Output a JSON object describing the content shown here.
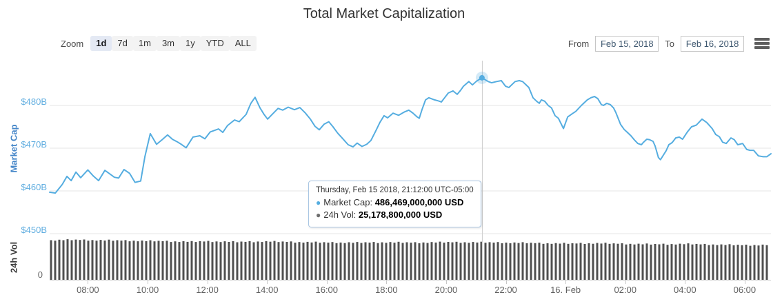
{
  "title": "Total Market Capitalization",
  "toolbar": {
    "zoom_label": "Zoom",
    "zoom_buttons": [
      {
        "label": "1d",
        "selected": true
      },
      {
        "label": "7d",
        "selected": false
      },
      {
        "label": "1m",
        "selected": false
      },
      {
        "label": "3m",
        "selected": false
      },
      {
        "label": "1y",
        "selected": false
      },
      {
        "label": "YTD",
        "selected": false
      },
      {
        "label": "ALL",
        "selected": false
      }
    ],
    "from_label": "From",
    "from_value": "Feb 15, 2018",
    "to_label": "To",
    "to_value": "Feb 16, 2018",
    "menu_icon": "hamburger-icon"
  },
  "tooltip": {
    "header": "Thursday, Feb 15 2018, 21:12:00 UTC-05:00",
    "rows": [
      {
        "bullet": "●",
        "label": "Market Cap:",
        "value": "486,469,000,000 USD"
      },
      {
        "bullet": "●",
        "label": "24h Vol:",
        "value": "25,178,800,000 USD"
      }
    ]
  },
  "colors": {
    "line": "#55ade0",
    "marker": "#55ade0",
    "marker_halo": "rgba(85,173,224,0.25)",
    "volume_bar": "#4f4f4f",
    "gridline": "#e6e6e6",
    "crosshair": "#cccccc",
    "axis_line": "#d0d0d0",
    "price_tick_label": "#61aee0",
    "selected_button_bg": "#e4e9f4",
    "tooltip_border": "#a9c6e3"
  },
  "chart_data": {
    "type": "line",
    "title": "Total Market Capitalization",
    "x_axis": {
      "kind": "datetime",
      "start_hour": 6.72,
      "end_hour": 30.88,
      "note": "hours since Feb 15 2018 00:00 local (UTC-05:00); >24 = Feb 16",
      "ticks": [
        {
          "hour": 8,
          "label": "08:00"
        },
        {
          "hour": 10,
          "label": "10:00"
        },
        {
          "hour": 12,
          "label": "12:00"
        },
        {
          "hour": 14,
          "label": "14:00"
        },
        {
          "hour": 16,
          "label": "16:00"
        },
        {
          "hour": 18,
          "label": "18:00"
        },
        {
          "hour": 20,
          "label": "20:00"
        },
        {
          "hour": 22,
          "label": "22:00"
        },
        {
          "hour": 24,
          "label": "16. Feb"
        },
        {
          "hour": 26,
          "label": "02:00"
        },
        {
          "hour": 28,
          "label": "04:00"
        },
        {
          "hour": 30,
          "label": "06:00"
        }
      ]
    },
    "y_axis_price": {
      "title": "Market Cap",
      "unit": "billion USD",
      "range": [
        450,
        490.5
      ],
      "ticks": [
        {
          "value": 450,
          "label": "$450B"
        },
        {
          "value": 460,
          "label": "$460B"
        },
        {
          "value": 470,
          "label": "$470B"
        },
        {
          "value": 480,
          "label": "$480B"
        }
      ]
    },
    "y_axis_volume": {
      "title": "24h Vol",
      "unit": "billion USD",
      "range": [
        0,
        31
      ],
      "ticks": [
        {
          "value": 0,
          "label": "0"
        }
      ]
    },
    "selected_point": {
      "hour": 21.2,
      "series": "Market Cap",
      "value_billions": 486.469,
      "volume_billions": 25.1788
    },
    "series": [
      {
        "name": "Market Cap",
        "type": "line",
        "color": "#55ade0",
        "points": [
          [
            6.72,
            459.7
          ],
          [
            6.91,
            459.5
          ],
          [
            7.14,
            461.5
          ],
          [
            7.3,
            463.4
          ],
          [
            7.44,
            462.4
          ],
          [
            7.6,
            464.4
          ],
          [
            7.76,
            463.1
          ],
          [
            8.0,
            464.9
          ],
          [
            8.18,
            463.5
          ],
          [
            8.36,
            462.4
          ],
          [
            8.57,
            464.8
          ],
          [
            8.75,
            463.9
          ],
          [
            8.89,
            463.2
          ],
          [
            9.03,
            463.0
          ],
          [
            9.21,
            465.0
          ],
          [
            9.4,
            464.1
          ],
          [
            9.58,
            462.0
          ],
          [
            9.77,
            462.3
          ],
          [
            9.91,
            468.0
          ],
          [
            10.09,
            473.4
          ],
          [
            10.3,
            470.9
          ],
          [
            10.49,
            472.0
          ],
          [
            10.67,
            473.1
          ],
          [
            10.83,
            472.1
          ],
          [
            10.99,
            471.5
          ],
          [
            11.13,
            470.9
          ],
          [
            11.29,
            470.1
          ],
          [
            11.52,
            472.6
          ],
          [
            11.75,
            472.9
          ],
          [
            11.92,
            472.2
          ],
          [
            12.1,
            473.8
          ],
          [
            12.38,
            474.5
          ],
          [
            12.52,
            473.7
          ],
          [
            12.68,
            475.3
          ],
          [
            12.91,
            476.6
          ],
          [
            13.07,
            476.2
          ],
          [
            13.3,
            477.9
          ],
          [
            13.46,
            480.5
          ],
          [
            13.6,
            481.9
          ],
          [
            13.76,
            479.5
          ],
          [
            13.9,
            477.9
          ],
          [
            14.02,
            476.8
          ],
          [
            14.16,
            477.8
          ],
          [
            14.37,
            479.3
          ],
          [
            14.53,
            478.9
          ],
          [
            14.71,
            479.6
          ],
          [
            14.92,
            479.0
          ],
          [
            15.1,
            479.5
          ],
          [
            15.29,
            478.2
          ],
          [
            15.45,
            476.8
          ],
          [
            15.61,
            475.1
          ],
          [
            15.75,
            474.3
          ],
          [
            15.91,
            475.6
          ],
          [
            16.07,
            476.2
          ],
          [
            16.21,
            475.0
          ],
          [
            16.37,
            473.5
          ],
          [
            16.54,
            472.2
          ],
          [
            16.72,
            470.8
          ],
          [
            16.88,
            470.3
          ],
          [
            17.02,
            471.2
          ],
          [
            17.18,
            470.4
          ],
          [
            17.34,
            470.9
          ],
          [
            17.48,
            471.8
          ],
          [
            17.64,
            474.0
          ],
          [
            17.78,
            476.0
          ],
          [
            17.92,
            477.6
          ],
          [
            18.04,
            477.1
          ],
          [
            18.22,
            478.2
          ],
          [
            18.41,
            477.7
          ],
          [
            18.61,
            478.5
          ],
          [
            18.75,
            478.9
          ],
          [
            18.89,
            478.2
          ],
          [
            19.03,
            477.3
          ],
          [
            19.1,
            477.0
          ],
          [
            19.19,
            479.0
          ],
          [
            19.31,
            481.3
          ],
          [
            19.42,
            481.8
          ],
          [
            19.61,
            481.3
          ],
          [
            19.77,
            481.0
          ],
          [
            19.84,
            480.8
          ],
          [
            19.95,
            481.8
          ],
          [
            20.07,
            482.9
          ],
          [
            20.23,
            483.4
          ],
          [
            20.37,
            482.6
          ],
          [
            20.48,
            483.5
          ],
          [
            20.58,
            484.5
          ],
          [
            20.76,
            485.6
          ],
          [
            20.88,
            484.8
          ],
          [
            21.02,
            485.7
          ],
          [
            21.2,
            486.469
          ],
          [
            21.41,
            485.6
          ],
          [
            21.52,
            485.3
          ],
          [
            21.69,
            485.6
          ],
          [
            21.85,
            485.8
          ],
          [
            21.99,
            484.5
          ],
          [
            22.1,
            484.2
          ],
          [
            22.31,
            485.6
          ],
          [
            22.45,
            485.8
          ],
          [
            22.56,
            485.6
          ],
          [
            22.77,
            484.2
          ],
          [
            22.91,
            481.8
          ],
          [
            23.03,
            481.0
          ],
          [
            23.12,
            480.5
          ],
          [
            23.19,
            481.3
          ],
          [
            23.3,
            481.0
          ],
          [
            23.42,
            480.0
          ],
          [
            23.53,
            479.4
          ],
          [
            23.65,
            477.6
          ],
          [
            23.76,
            477.0
          ],
          [
            23.93,
            474.6
          ],
          [
            24.07,
            477.3
          ],
          [
            24.23,
            478.1
          ],
          [
            24.34,
            478.6
          ],
          [
            24.53,
            480.0
          ],
          [
            24.73,
            481.3
          ],
          [
            24.85,
            481.8
          ],
          [
            24.97,
            482.1
          ],
          [
            25.08,
            481.6
          ],
          [
            25.2,
            480.2
          ],
          [
            25.27,
            480.0
          ],
          [
            25.38,
            480.5
          ],
          [
            25.5,
            480.2
          ],
          [
            25.61,
            479.4
          ],
          [
            25.68,
            478.4
          ],
          [
            25.84,
            475.6
          ],
          [
            25.96,
            474.4
          ],
          [
            26.07,
            473.7
          ],
          [
            26.19,
            472.9
          ],
          [
            26.31,
            471.9
          ],
          [
            26.42,
            471.1
          ],
          [
            26.54,
            470.8
          ],
          [
            26.6,
            471.3
          ],
          [
            26.72,
            472.1
          ],
          [
            26.81,
            472.0
          ],
          [
            26.93,
            471.6
          ],
          [
            27.0,
            470.5
          ],
          [
            27.11,
            467.8
          ],
          [
            27.18,
            467.3
          ],
          [
            27.27,
            468.3
          ],
          [
            27.37,
            469.4
          ],
          [
            27.46,
            470.8
          ],
          [
            27.57,
            471.3
          ],
          [
            27.69,
            472.4
          ],
          [
            27.81,
            472.6
          ],
          [
            27.92,
            472.1
          ],
          [
            28.08,
            473.8
          ],
          [
            28.22,
            475.0
          ],
          [
            28.38,
            475.4
          ],
          [
            28.57,
            476.8
          ],
          [
            28.73,
            476.0
          ],
          [
            28.91,
            474.6
          ],
          [
            29.03,
            473.2
          ],
          [
            29.15,
            472.7
          ],
          [
            29.26,
            471.4
          ],
          [
            29.38,
            471.1
          ],
          [
            29.54,
            472.4
          ],
          [
            29.65,
            472.0
          ],
          [
            29.77,
            470.8
          ],
          [
            29.93,
            471.1
          ],
          [
            30.07,
            469.7
          ],
          [
            30.18,
            469.5
          ],
          [
            30.3,
            469.5
          ],
          [
            30.46,
            468.2
          ],
          [
            30.62,
            468.0
          ],
          [
            30.74,
            468.0
          ],
          [
            30.88,
            468.7
          ]
        ]
      },
      {
        "name": "24h Vol",
        "type": "column",
        "color": "#4f4f4f",
        "points": [
          [
            6.72,
            26.6
          ],
          [
            7.5,
            26.9
          ],
          [
            8.5,
            26.6
          ],
          [
            9.5,
            26.3
          ],
          [
            10.5,
            26.0
          ],
          [
            11.5,
            25.6
          ],
          [
            12.0,
            25.9
          ],
          [
            13.0,
            25.5
          ],
          [
            14.0,
            25.8
          ],
          [
            15.0,
            25.4
          ],
          [
            16.0,
            25.1
          ],
          [
            17.0,
            25.0
          ],
          [
            18.0,
            25.2
          ],
          [
            19.0,
            25.0
          ],
          [
            20.0,
            25.3
          ],
          [
            21.2,
            25.18
          ],
          [
            22.0,
            25.0
          ],
          [
            23.0,
            24.7
          ],
          [
            24.0,
            24.4
          ],
          [
            25.0,
            24.6
          ],
          [
            26.0,
            24.2
          ],
          [
            27.0,
            23.9
          ],
          [
            28.0,
            24.1
          ],
          [
            29.0,
            23.7
          ],
          [
            30.0,
            23.3
          ],
          [
            30.88,
            23.5
          ]
        ]
      }
    ]
  }
}
